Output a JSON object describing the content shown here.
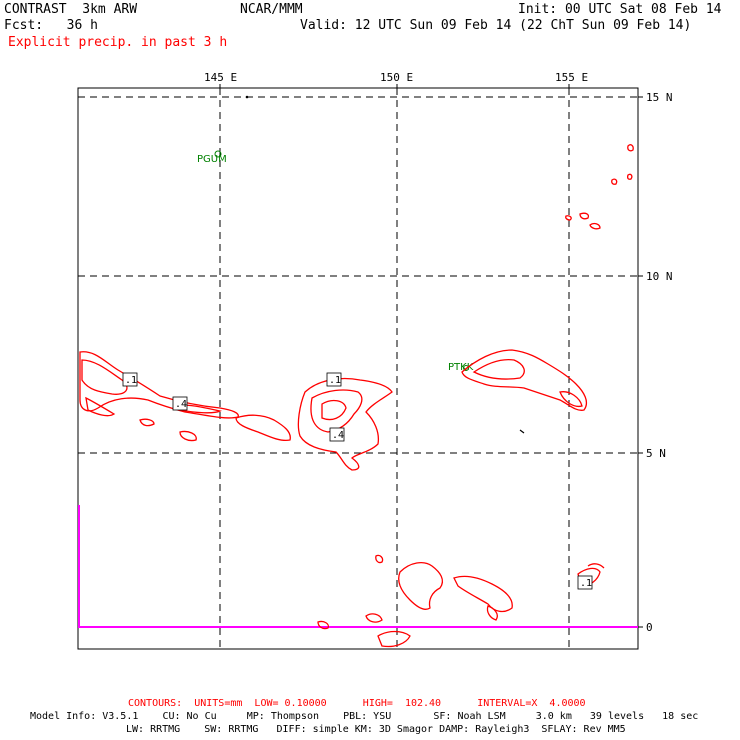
{
  "header": {
    "model": "CONTRAST  3km ARW",
    "org": "NCAR/MMM",
    "init": "Init: 00 UTC Sat 08 Feb 14",
    "fcst": "Fcst:   36 h",
    "valid": "Valid: 12 UTC Sun 09 Feb 14 (22 ChT Sun 09 Feb 14)",
    "field": "Explicit precip. in past 3 h"
  },
  "map": {
    "lon_labels": [
      "145 E",
      "150 E",
      "155 E"
    ],
    "lat_labels": [
      "15 N",
      "10 N",
      "5 N",
      "0"
    ],
    "stations": [
      {
        "id": "PGUM",
        "lon": 144.8,
        "lat": 13.5
      },
      {
        "id": "PTKK",
        "lon": 151.85,
        "lat": 7.45
      }
    ],
    "contour_labels": [
      ".1",
      ".4",
      ".1",
      ".4",
      ".1"
    ],
    "colors": {
      "precip": "#ff0000",
      "grid": "#000000",
      "station": "#008000",
      "boundary": "#ff00ff"
    }
  },
  "footer": {
    "contours": "CONTOURS:  UNITS=mm  LOW= 0.10000      HIGH=  102.40      INTERVAL=X  4.0000",
    "model_info_1": "Model Info: V3.5.1    CU: No Cu     MP: Thompson    PBL: YSU       SF: Noah LSM     3.0 km   39 levels   18 sec",
    "model_info_2": "LW: RRTMG    SW: RRTMG   DIFF: simple KM: 3D Smagor DAMP: Rayleigh3  SFLAY: Rev MM5"
  }
}
